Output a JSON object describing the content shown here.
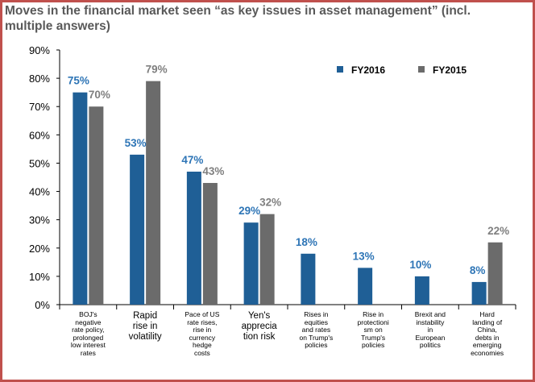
{
  "chart_data": {
    "type": "bar",
    "title": "Moves in the financial market seen “as key issues in asset management” (incl. multiple answers)",
    "categories": [
      "BOJ's negative rate policy, prolonged low interest rates",
      "Rapid rise in volatility",
      "Pace of US rate rises, rise in currency hedge costs",
      "Yen's apprecia tion risk",
      "Rises in equities and rates on Trump's policies",
      "Rise in protectioni sm on Trump's policies",
      "Brexit and instability in European politics",
      "Hard landing of China, debts in emerging economies"
    ],
    "category_label_lines": [
      [
        "BOJ's",
        "negative",
        "rate policy,",
        "prolonged",
        "low interest",
        "rates"
      ],
      [
        "Rapid",
        "rise in",
        "volatility"
      ],
      [
        "Pace of US",
        "rate rises,",
        "rise in",
        "currency",
        "hedge",
        "costs"
      ],
      [
        "Yen's",
        "apprecia",
        "tion risk"
      ],
      [
        "Rises in",
        "equities",
        "and rates",
        "on Trump's",
        "policies"
      ],
      [
        "Rise in",
        "protectioni",
        "sm on",
        "Trump's",
        "policies"
      ],
      [
        "Brexit and",
        "instability",
        "in",
        "European",
        "politics"
      ],
      [
        "Hard",
        "landing of",
        "China,",
        "debts in",
        "emerging",
        "economies"
      ]
    ],
    "category_label_style": [
      "small",
      "large",
      "small",
      "large",
      "small",
      "small",
      "small",
      "small"
    ],
    "series": [
      {
        "name": "FY2016",
        "values": [
          75,
          53,
          47,
          29,
          18,
          13,
          10,
          8
        ],
        "labels": [
          "75%",
          "53%",
          "47%",
          "29%",
          "18%",
          "13%",
          "10%",
          "8%"
        ]
      },
      {
        "name": "FY2015",
        "values": [
          70,
          79,
          43,
          32,
          null,
          null,
          null,
          22
        ],
        "labels": [
          "70%",
          "79%",
          "43%",
          "32%",
          null,
          null,
          null,
          "22%"
        ]
      }
    ],
    "colors": {
      "FY2016": "#1f5f96",
      "FY2015": "#6b6b6b",
      "label_FY2016": "#2e75b6",
      "label_FY2015": "#7f7f7f"
    },
    "yticks": [
      "0%",
      "10%",
      "20%",
      "30%",
      "40%",
      "50%",
      "60%",
      "70%",
      "80%",
      "90%"
    ],
    "ylim": [
      0,
      90
    ],
    "xlabel": "",
    "ylabel": "",
    "legend_position": "top-right",
    "grid": false
  }
}
